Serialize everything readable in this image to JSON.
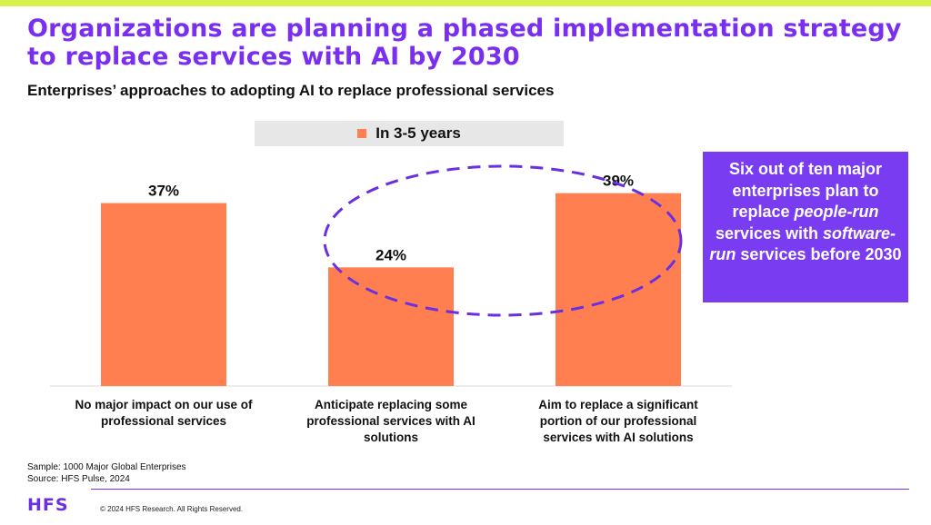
{
  "title": "Organizations are planning a phased implementation strategy to replace services with AI by 2030",
  "subtitle": "Enterprises’ approaches to adopting AI to replace professional services",
  "colors": {
    "bar": "#ff7f50",
    "accent": "#7a2ff0",
    "callout_bg": "#7a3cf0",
    "top_bar": "#d7f24a"
  },
  "callout": {
    "line1": "Six out of ten major enterprises plan to replace ",
    "em1": "people-run",
    "line2": " services with ",
    "em2": "software-run",
    "line3": " services before 2030"
  },
  "chart_data": {
    "type": "bar",
    "categories": [
      [
        "No major impact on our use of",
        "professional services"
      ],
      [
        "Anticipate replacing some",
        "professional services with AI",
        "solutions"
      ],
      [
        "Aim to replace a significant",
        "portion of our professional",
        "services with AI solutions"
      ]
    ],
    "series": [
      {
        "name": "In 3-5 years",
        "values": [
          37,
          24,
          39
        ]
      }
    ],
    "value_labels": [
      "37%",
      "24%",
      "39%"
    ],
    "ylim": [
      0,
      45
    ],
    "grid": false,
    "legend": "top-center",
    "highlight": "dashed ellipse around 24% and 39% bars"
  },
  "footer": {
    "sample": "Sample: 1000 Major Global Enterprises",
    "source": "Source: HFS Pulse, 2024",
    "logo": "HFS",
    "copyright": "© 2024 HFS Research. All Rights Reserved."
  }
}
